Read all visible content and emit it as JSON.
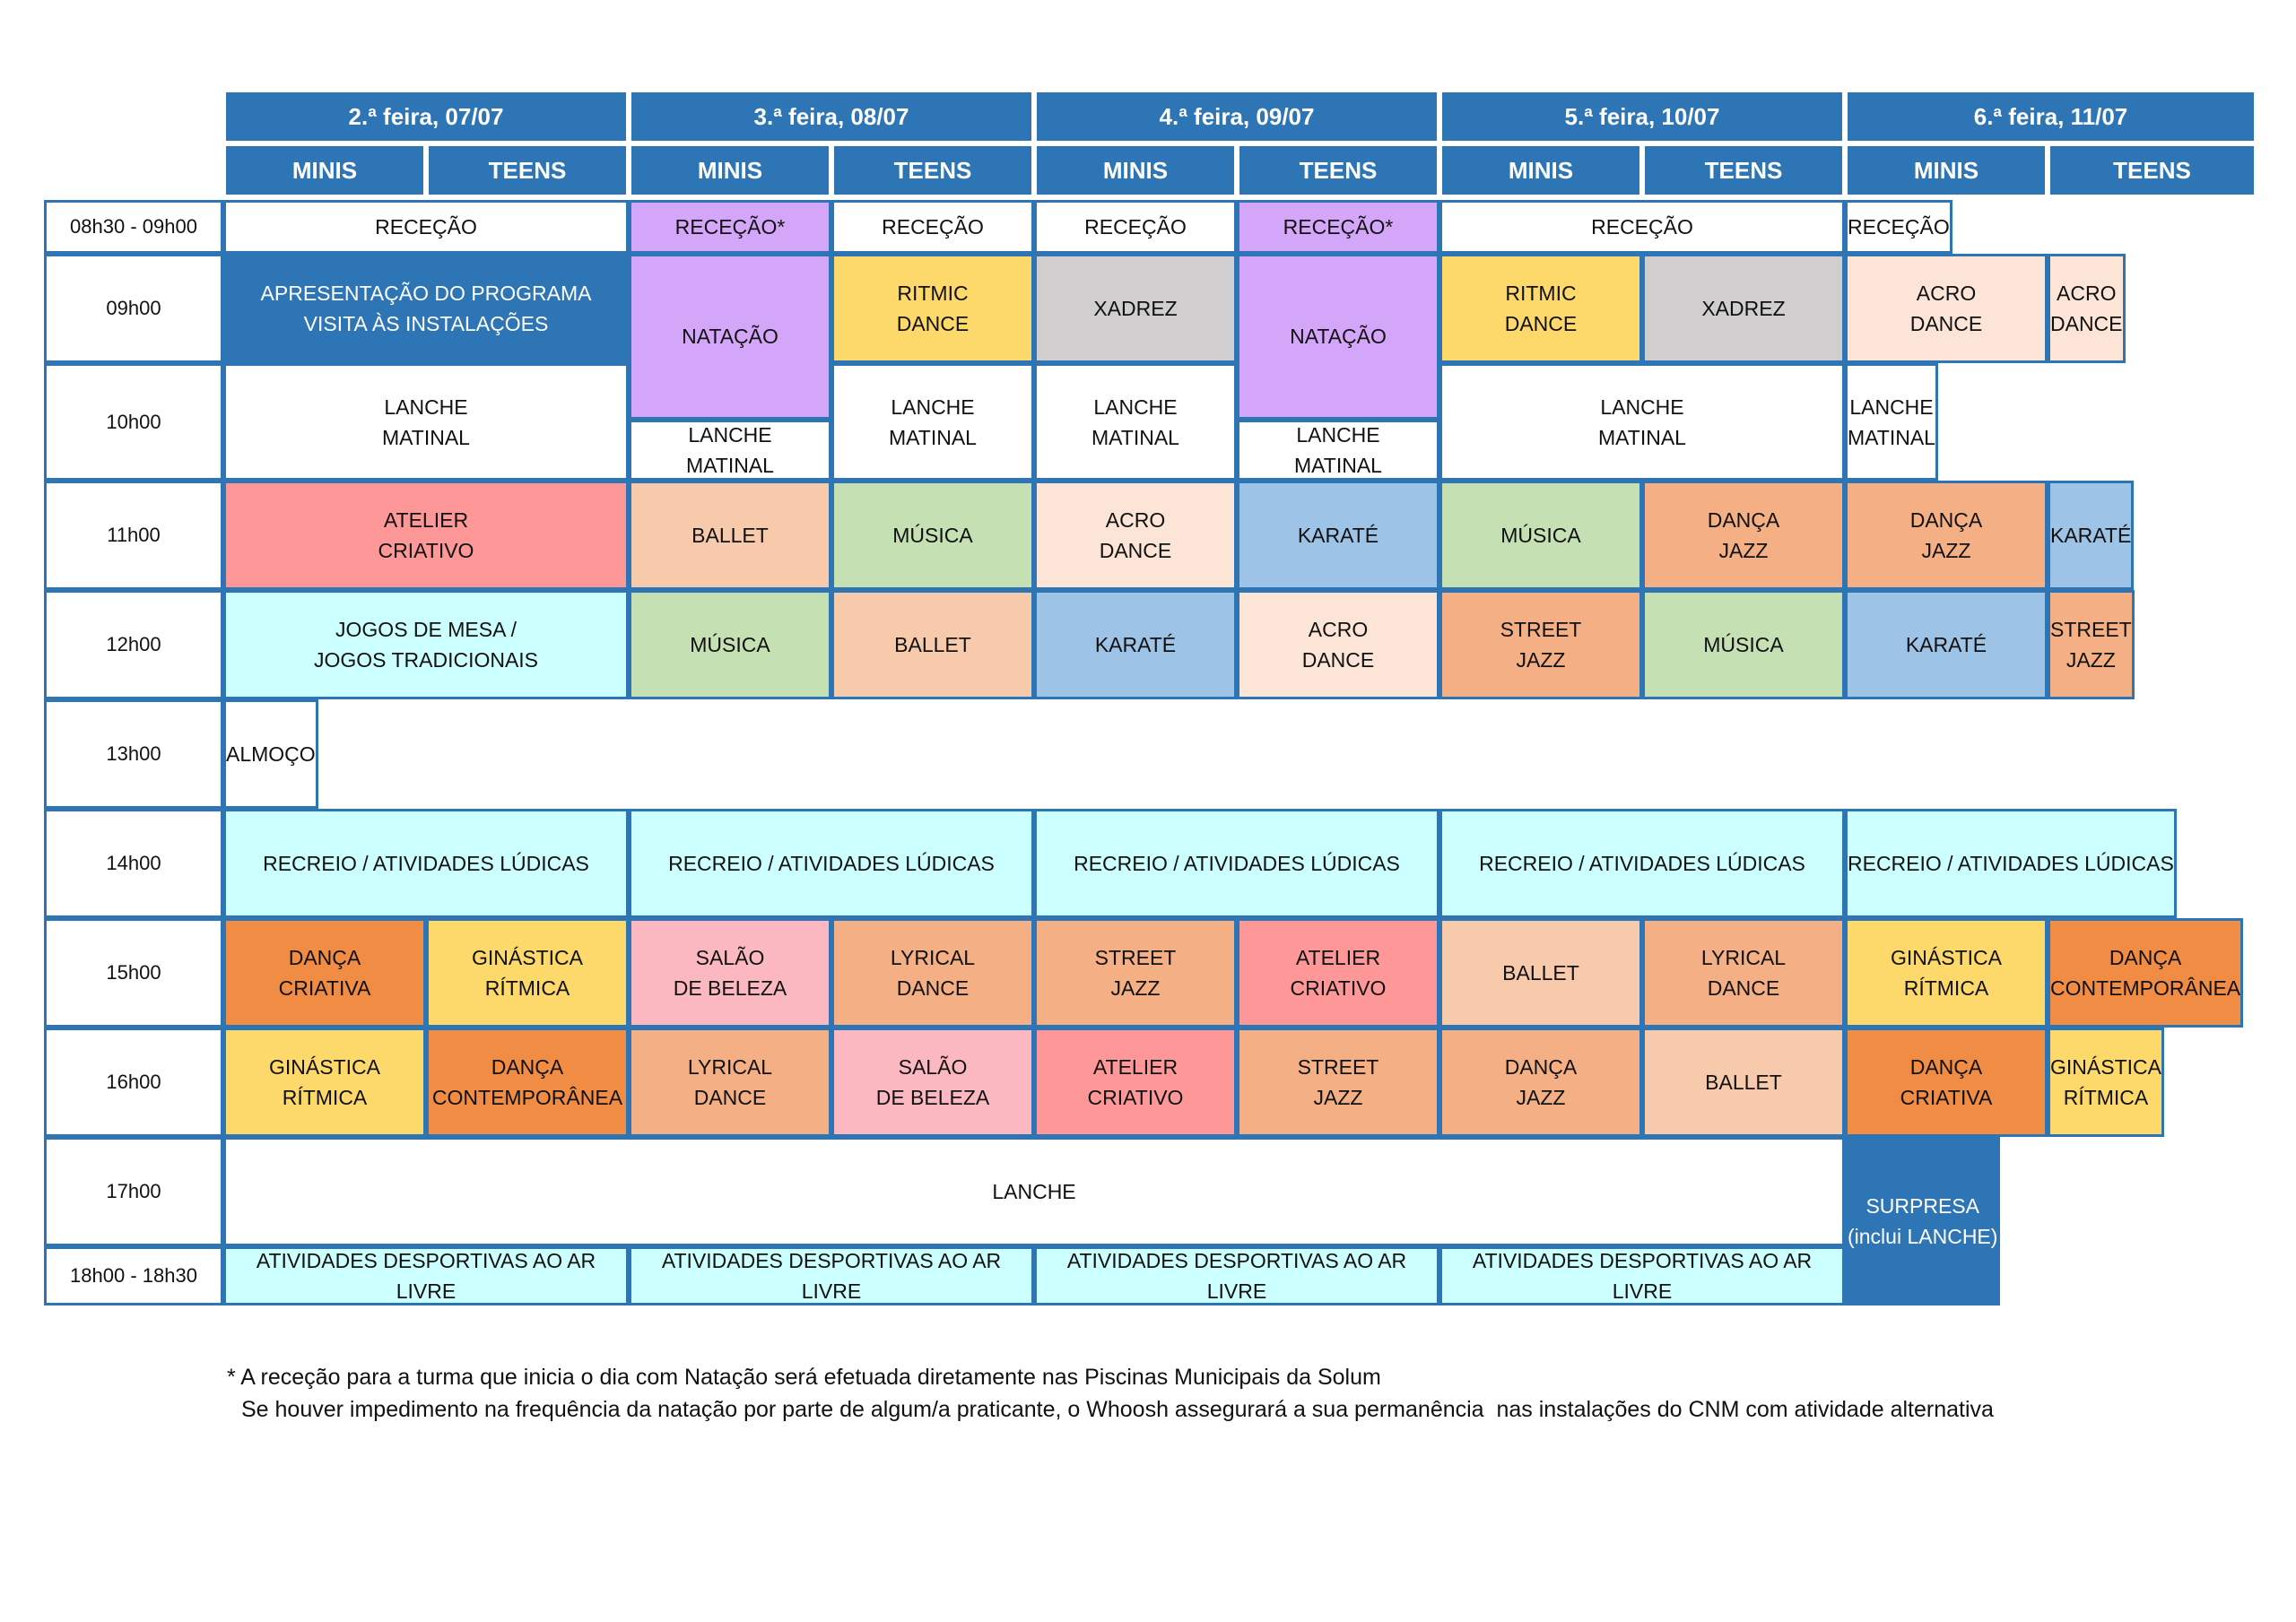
{
  "days": [
    "2.ª feira, 07/07",
    "3.ª feira, 08/07",
    "4.ª feira, 09/07",
    "5.ª feira, 10/07",
    "6.ª feira, 11/07"
  ],
  "groups": [
    "MINIS",
    "TEENS"
  ],
  "times": [
    "08h30 - 09h00",
    "09h00",
    "10h00",
    "11h00",
    "12h00",
    "13h00",
    "14h00",
    "15h00",
    "16h00",
    "17h00",
    "18h00 - 18h30"
  ],
  "colors": {
    "blue": "#2e75b6",
    "white": "#ffffff",
    "lilac": "#d4a6fa",
    "yellow": "#fdd86a",
    "grey": "#d0cece",
    "peach": "#fce4d6",
    "red": "#fe9898",
    "light_orange": "#f7caac",
    "green": "#c5e0b3",
    "light_blue": "#9dc3e6",
    "orange": "#f4b084",
    "cyan": "#ccffff",
    "dark_orange": "#f08c44",
    "pink": "#fcb8c0"
  },
  "cells": [
    {
      "c": 1,
      "r": 0,
      "cs": 2,
      "rs": 1,
      "t": "RECEÇÃO",
      "bg": "white"
    },
    {
      "c": 3,
      "r": 0,
      "cs": 1,
      "rs": 1,
      "t": "RECEÇÃO*",
      "bg": "lilac"
    },
    {
      "c": 4,
      "r": 0,
      "cs": 1,
      "rs": 1,
      "t": "RECEÇÃO",
      "bg": "white"
    },
    {
      "c": 5,
      "r": 0,
      "cs": 1,
      "rs": 1,
      "t": "RECEÇÃO",
      "bg": "white"
    },
    {
      "c": 6,
      "r": 0,
      "cs": 1,
      "rs": 1,
      "t": "RECEÇÃO*",
      "bg": "lilac"
    },
    {
      "c": 7,
      "r": 0,
      "cs": 2,
      "rs": 1,
      "t": "RECEÇÃO",
      "bg": "white"
    },
    {
      "c": 9,
      "r": 0,
      "cs": 2,
      "rs": 1,
      "t": "RECEÇÃO",
      "bg": "white"
    },
    {
      "c": 1,
      "r": 1,
      "cs": 2,
      "rs": 1,
      "t": "APRESENTAÇÃO DO PROGRAMA\nVISITA ÀS INSTALAÇÕES",
      "bg": "blue",
      "fg": "#ffffff"
    },
    {
      "c": 3,
      "r": 1,
      "cs": 1,
      "rs": 1.48,
      "t": "NATAÇÃO",
      "bg": "lilac"
    },
    {
      "c": 4,
      "r": 1,
      "cs": 1,
      "rs": 1,
      "t": "RITMIC\nDANCE",
      "bg": "yellow"
    },
    {
      "c": 5,
      "r": 1,
      "cs": 1,
      "rs": 1,
      "t": "XADREZ",
      "bg": "grey"
    },
    {
      "c": 6,
      "r": 1,
      "cs": 1,
      "rs": 1.48,
      "t": "NATAÇÃO",
      "bg": "lilac"
    },
    {
      "c": 7,
      "r": 1,
      "cs": 1,
      "rs": 1,
      "t": "RITMIC\nDANCE",
      "bg": "yellow"
    },
    {
      "c": 8,
      "r": 1,
      "cs": 1,
      "rs": 1,
      "t": "XADREZ",
      "bg": "grey"
    },
    {
      "c": 9,
      "r": 1,
      "cs": 1,
      "rs": 1,
      "t": "ACRO\nDANCE",
      "bg": "peach"
    },
    {
      "c": 10,
      "r": 1,
      "cs": 1,
      "rs": 1,
      "t": "ACRO\nDANCE",
      "bg": "peach"
    },
    {
      "c": 1,
      "r": 2,
      "cs": 2,
      "rs": 1,
      "t": "LANCHE\nMATINAL",
      "bg": "white"
    },
    {
      "c": 3,
      "r": 2.48,
      "cs": 1,
      "rs": 0.52,
      "t": "LANCHE\nMATINAL",
      "bg": "white"
    },
    {
      "c": 4,
      "r": 2,
      "cs": 1,
      "rs": 1,
      "t": "LANCHE\nMATINAL",
      "bg": "white"
    },
    {
      "c": 5,
      "r": 2,
      "cs": 1,
      "rs": 1,
      "t": "LANCHE\nMATINAL",
      "bg": "white"
    },
    {
      "c": 6,
      "r": 2.48,
      "cs": 1,
      "rs": 0.52,
      "t": "LANCHE\nMATINAL",
      "bg": "white"
    },
    {
      "c": 7,
      "r": 2,
      "cs": 2,
      "rs": 1,
      "t": "LANCHE\nMATINAL",
      "bg": "white"
    },
    {
      "c": 9,
      "r": 2,
      "cs": 2,
      "rs": 1,
      "t": "LANCHE\nMATINAL",
      "bg": "white"
    },
    {
      "c": 1,
      "r": 3,
      "cs": 2,
      "rs": 1,
      "t": "ATELIER\nCRIATIVO",
      "bg": "red"
    },
    {
      "c": 3,
      "r": 3,
      "cs": 1,
      "rs": 1,
      "t": "BALLET",
      "bg": "light_orange"
    },
    {
      "c": 4,
      "r": 3,
      "cs": 1,
      "rs": 1,
      "t": "MÚSICA",
      "bg": "green"
    },
    {
      "c": 5,
      "r": 3,
      "cs": 1,
      "rs": 1,
      "t": "ACRO\nDANCE",
      "bg": "peach"
    },
    {
      "c": 6,
      "r": 3,
      "cs": 1,
      "rs": 1,
      "t": "KARATÉ",
      "bg": "light_blue"
    },
    {
      "c": 7,
      "r": 3,
      "cs": 1,
      "rs": 1,
      "t": "MÚSICA",
      "bg": "green"
    },
    {
      "c": 8,
      "r": 3,
      "cs": 1,
      "rs": 1,
      "t": "DANÇA\nJAZZ",
      "bg": "orange"
    },
    {
      "c": 9,
      "r": 3,
      "cs": 1,
      "rs": 1,
      "t": "DANÇA\nJAZZ",
      "bg": "orange"
    },
    {
      "c": 10,
      "r": 3,
      "cs": 1,
      "rs": 1,
      "t": "KARATÉ",
      "bg": "light_blue"
    },
    {
      "c": 1,
      "r": 4,
      "cs": 2,
      "rs": 1,
      "t": "JOGOS DE MESA /\nJOGOS TRADICIONAIS",
      "bg": "cyan"
    },
    {
      "c": 3,
      "r": 4,
      "cs": 1,
      "rs": 1,
      "t": "MÚSICA",
      "bg": "green"
    },
    {
      "c": 4,
      "r": 4,
      "cs": 1,
      "rs": 1,
      "t": "BALLET",
      "bg": "light_orange"
    },
    {
      "c": 5,
      "r": 4,
      "cs": 1,
      "rs": 1,
      "t": "KARATÉ",
      "bg": "light_blue"
    },
    {
      "c": 6,
      "r": 4,
      "cs": 1,
      "rs": 1,
      "t": "ACRO\nDANCE",
      "bg": "peach"
    },
    {
      "c": 7,
      "r": 4,
      "cs": 1,
      "rs": 1,
      "t": "STREET\nJAZZ",
      "bg": "orange"
    },
    {
      "c": 8,
      "r": 4,
      "cs": 1,
      "rs": 1,
      "t": "MÚSICA",
      "bg": "green"
    },
    {
      "c": 9,
      "r": 4,
      "cs": 1,
      "rs": 1,
      "t": "KARATÉ",
      "bg": "light_blue"
    },
    {
      "c": 10,
      "r": 4,
      "cs": 1,
      "rs": 1,
      "t": "STREET\nJAZZ",
      "bg": "orange"
    },
    {
      "c": 1,
      "r": 5,
      "cs": 10,
      "rs": 1,
      "t": "ALMOÇO",
      "bg": "white"
    },
    {
      "c": 1,
      "r": 6,
      "cs": 2,
      "rs": 1,
      "t": "RECREIO / ATIVIDADES LÚDICAS",
      "bg": "cyan"
    },
    {
      "c": 3,
      "r": 6,
      "cs": 2,
      "rs": 1,
      "t": "RECREIO / ATIVIDADES LÚDICAS",
      "bg": "cyan"
    },
    {
      "c": 5,
      "r": 6,
      "cs": 2,
      "rs": 1,
      "t": "RECREIO / ATIVIDADES LÚDICAS",
      "bg": "cyan"
    },
    {
      "c": 7,
      "r": 6,
      "cs": 2,
      "rs": 1,
      "t": "RECREIO / ATIVIDADES LÚDICAS",
      "bg": "cyan"
    },
    {
      "c": 9,
      "r": 6,
      "cs": 2,
      "rs": 1,
      "t": "RECREIO / ATIVIDADES LÚDICAS",
      "bg": "cyan"
    },
    {
      "c": 1,
      "r": 7,
      "cs": 1,
      "rs": 1,
      "t": "DANÇA\nCRIATIVA",
      "bg": "dark_orange"
    },
    {
      "c": 2,
      "r": 7,
      "cs": 1,
      "rs": 1,
      "t": "GINÁSTICA\nRÍTMICA",
      "bg": "yellow"
    },
    {
      "c": 3,
      "r": 7,
      "cs": 1,
      "rs": 1,
      "t": "SALÃO\nDE BELEZA",
      "bg": "pink"
    },
    {
      "c": 4,
      "r": 7,
      "cs": 1,
      "rs": 1,
      "t": "LYRICAL\nDANCE",
      "bg": "orange"
    },
    {
      "c": 5,
      "r": 7,
      "cs": 1,
      "rs": 1,
      "t": "STREET\nJAZZ",
      "bg": "orange"
    },
    {
      "c": 6,
      "r": 7,
      "cs": 1,
      "rs": 1,
      "t": "ATELIER\nCRIATIVO",
      "bg": "red"
    },
    {
      "c": 7,
      "r": 7,
      "cs": 1,
      "rs": 1,
      "t": "BALLET",
      "bg": "light_orange"
    },
    {
      "c": 8,
      "r": 7,
      "cs": 1,
      "rs": 1,
      "t": "LYRICAL\nDANCE",
      "bg": "orange"
    },
    {
      "c": 9,
      "r": 7,
      "cs": 1,
      "rs": 1,
      "t": "GINÁSTICA\nRÍTMICA",
      "bg": "yellow"
    },
    {
      "c": 10,
      "r": 7,
      "cs": 1,
      "rs": 1,
      "t": "DANÇA\nCONTEMPORÂNEA",
      "bg": "dark_orange"
    },
    {
      "c": 1,
      "r": 8,
      "cs": 1,
      "rs": 1,
      "t": "GINÁSTICA\nRÍTMICA",
      "bg": "yellow"
    },
    {
      "c": 2,
      "r": 8,
      "cs": 1,
      "rs": 1,
      "t": "DANÇA\nCONTEMPORÂNEA",
      "bg": "dark_orange"
    },
    {
      "c": 3,
      "r": 8,
      "cs": 1,
      "rs": 1,
      "t": "LYRICAL\nDANCE",
      "bg": "orange"
    },
    {
      "c": 4,
      "r": 8,
      "cs": 1,
      "rs": 1,
      "t": "SALÃO\nDE BELEZA",
      "bg": "pink"
    },
    {
      "c": 5,
      "r": 8,
      "cs": 1,
      "rs": 1,
      "t": "ATELIER\nCRIATIVO",
      "bg": "red"
    },
    {
      "c": 6,
      "r": 8,
      "cs": 1,
      "rs": 1,
      "t": "STREET\nJAZZ",
      "bg": "orange"
    },
    {
      "c": 7,
      "r": 8,
      "cs": 1,
      "rs": 1,
      "t": "DANÇA\nJAZZ",
      "bg": "orange"
    },
    {
      "c": 8,
      "r": 8,
      "cs": 1,
      "rs": 1,
      "t": "BALLET",
      "bg": "light_orange"
    },
    {
      "c": 9,
      "r": 8,
      "cs": 1,
      "rs": 1,
      "t": "DANÇA\nCRIATIVA",
      "bg": "dark_orange"
    },
    {
      "c": 10,
      "r": 8,
      "cs": 1,
      "rs": 1,
      "t": "GINÁSTICA\nRÍTMICA",
      "bg": "yellow"
    },
    {
      "c": 1,
      "r": 9,
      "cs": 8,
      "rs": 1,
      "t": "LANCHE",
      "bg": "white"
    },
    {
      "c": 9,
      "r": 9,
      "cs": 2,
      "rs": 2,
      "t": "SURPRESA\n(inclui LANCHE)",
      "bg": "blue",
      "fg": "#ffffff"
    },
    {
      "c": 1,
      "r": 10,
      "cs": 2,
      "rs": 1,
      "t": "ATIVIDADES DESPORTIVAS AO AR LIVRE",
      "bg": "cyan"
    },
    {
      "c": 3,
      "r": 10,
      "cs": 2,
      "rs": 1,
      "t": "ATIVIDADES DESPORTIVAS AO AR LIVRE",
      "bg": "cyan"
    },
    {
      "c": 5,
      "r": 10,
      "cs": 2,
      "rs": 1,
      "t": "ATIVIDADES DESPORTIVAS AO AR LIVRE",
      "bg": "cyan"
    },
    {
      "c": 7,
      "r": 10,
      "cs": 2,
      "rs": 1,
      "t": "ATIVIDADES DESPORTIVAS AO AR LIVRE",
      "bg": "cyan"
    }
  ],
  "notes": [
    "* A receção para a turma que inicia o dia com Natação será efetuada diretamente nas Piscinas Municipais da Solum",
    "Se houver impedimento na frequência da natação por parte de algum/a praticante, o Whoosh assegurará a sua permanência  nas instalações do CNM com atividade alternativa"
  ]
}
